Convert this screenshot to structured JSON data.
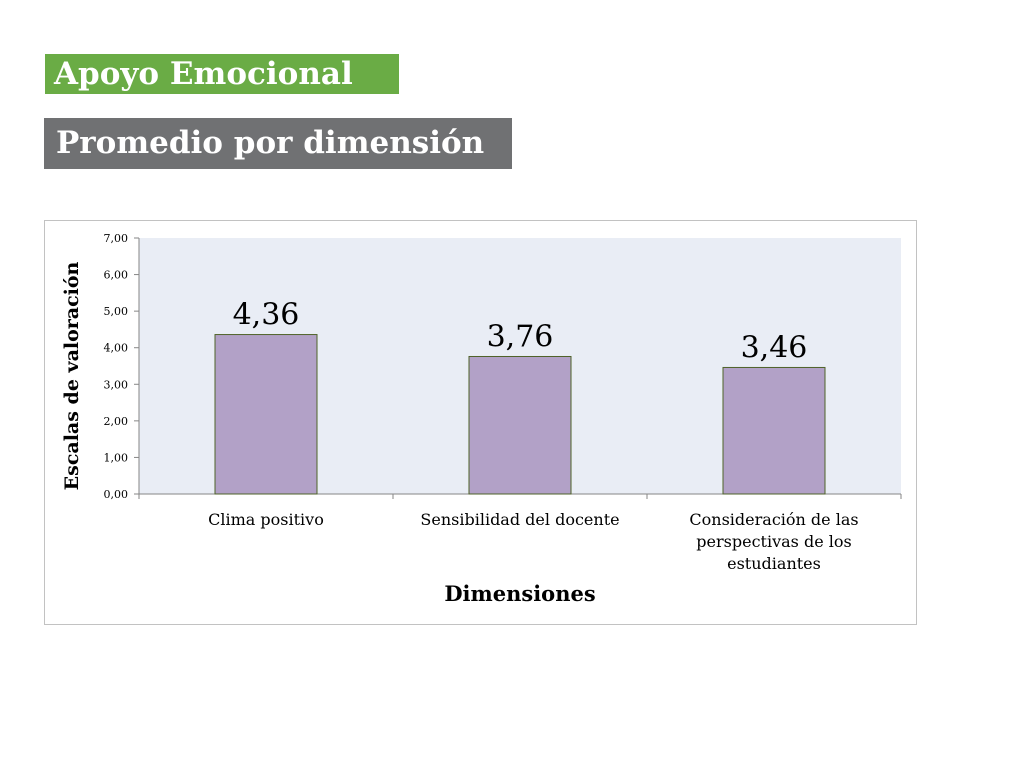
{
  "slide": {
    "title": "Apoyo Emocional",
    "subtitle": "Promedio por dimensión"
  },
  "colors": {
    "title_bg": "#6aac45",
    "subtitle_bg": "#707173",
    "plot_bg": "#e9edf5",
    "bar_fill": "#b2a1c7",
    "bar_stroke": "#4f6228"
  },
  "chart_data": {
    "type": "bar",
    "categories": [
      [
        "Clima positivo"
      ],
      [
        "Sensibilidad del docente"
      ],
      [
        "Consideración de las",
        "perspectivas de los",
        "estudiantes"
      ]
    ],
    "values": [
      4.36,
      3.76,
      3.46
    ],
    "data_labels": [
      "4,36",
      "3,76",
      "3,46"
    ],
    "xlabel": "Dimensiones",
    "ylabel": "Escalas de valoración",
    "ylim": [
      0,
      7
    ],
    "yticks": [
      "0,00",
      "1,00",
      "2,00",
      "3,00",
      "4,00",
      "5,00",
      "6,00",
      "7,00"
    ],
    "grid": false,
    "legend": "none"
  }
}
